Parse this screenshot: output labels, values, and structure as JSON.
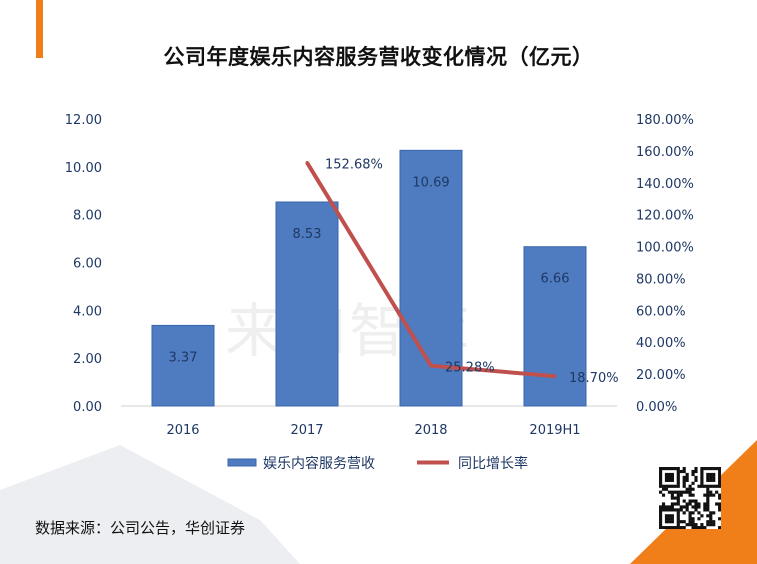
{
  "title": "公司年度娱乐内容服务营收变化情况（亿元）",
  "source": "数据来源：公司公告，华创证券",
  "watermark": "来咖智库",
  "colors": {
    "accent": "#f07f1a",
    "bar": "#4f7cc0",
    "bar_dark": "#3a66ad",
    "line": "#c0504d",
    "label": "#1f3864",
    "axis_text": "#1f3864"
  },
  "chart_data": {
    "type": "bar+line",
    "categories": [
      "2016",
      "2017",
      "2018",
      "2019H1"
    ],
    "series": [
      {
        "name": "娱乐内容服务营收",
        "type": "bar",
        "axis": "left",
        "values": [
          3.37,
          8.53,
          10.69,
          6.66
        ],
        "labels": [
          "3.37",
          "8.53",
          "10.69",
          "6.66"
        ]
      },
      {
        "name": "同比增长率",
        "type": "line",
        "axis": "right",
        "values": [
          null,
          152.68,
          25.28,
          18.7
        ],
        "labels": [
          "",
          "152.68%",
          "25.28%",
          "18.70%"
        ]
      }
    ],
    "y_left": {
      "ticks": [
        "0.00",
        "2.00",
        "4.00",
        "6.00",
        "8.00",
        "10.00",
        "12.00"
      ],
      "min": 0,
      "max": 12
    },
    "y_right": {
      "ticks": [
        "0.00%",
        "20.00%",
        "40.00%",
        "60.00%",
        "80.00%",
        "100.00%",
        "120.00%",
        "140.00%",
        "160.00%",
        "180.00%"
      ],
      "min": 0,
      "max": 180
    },
    "legend_position": "bottom",
    "grid": false
  }
}
